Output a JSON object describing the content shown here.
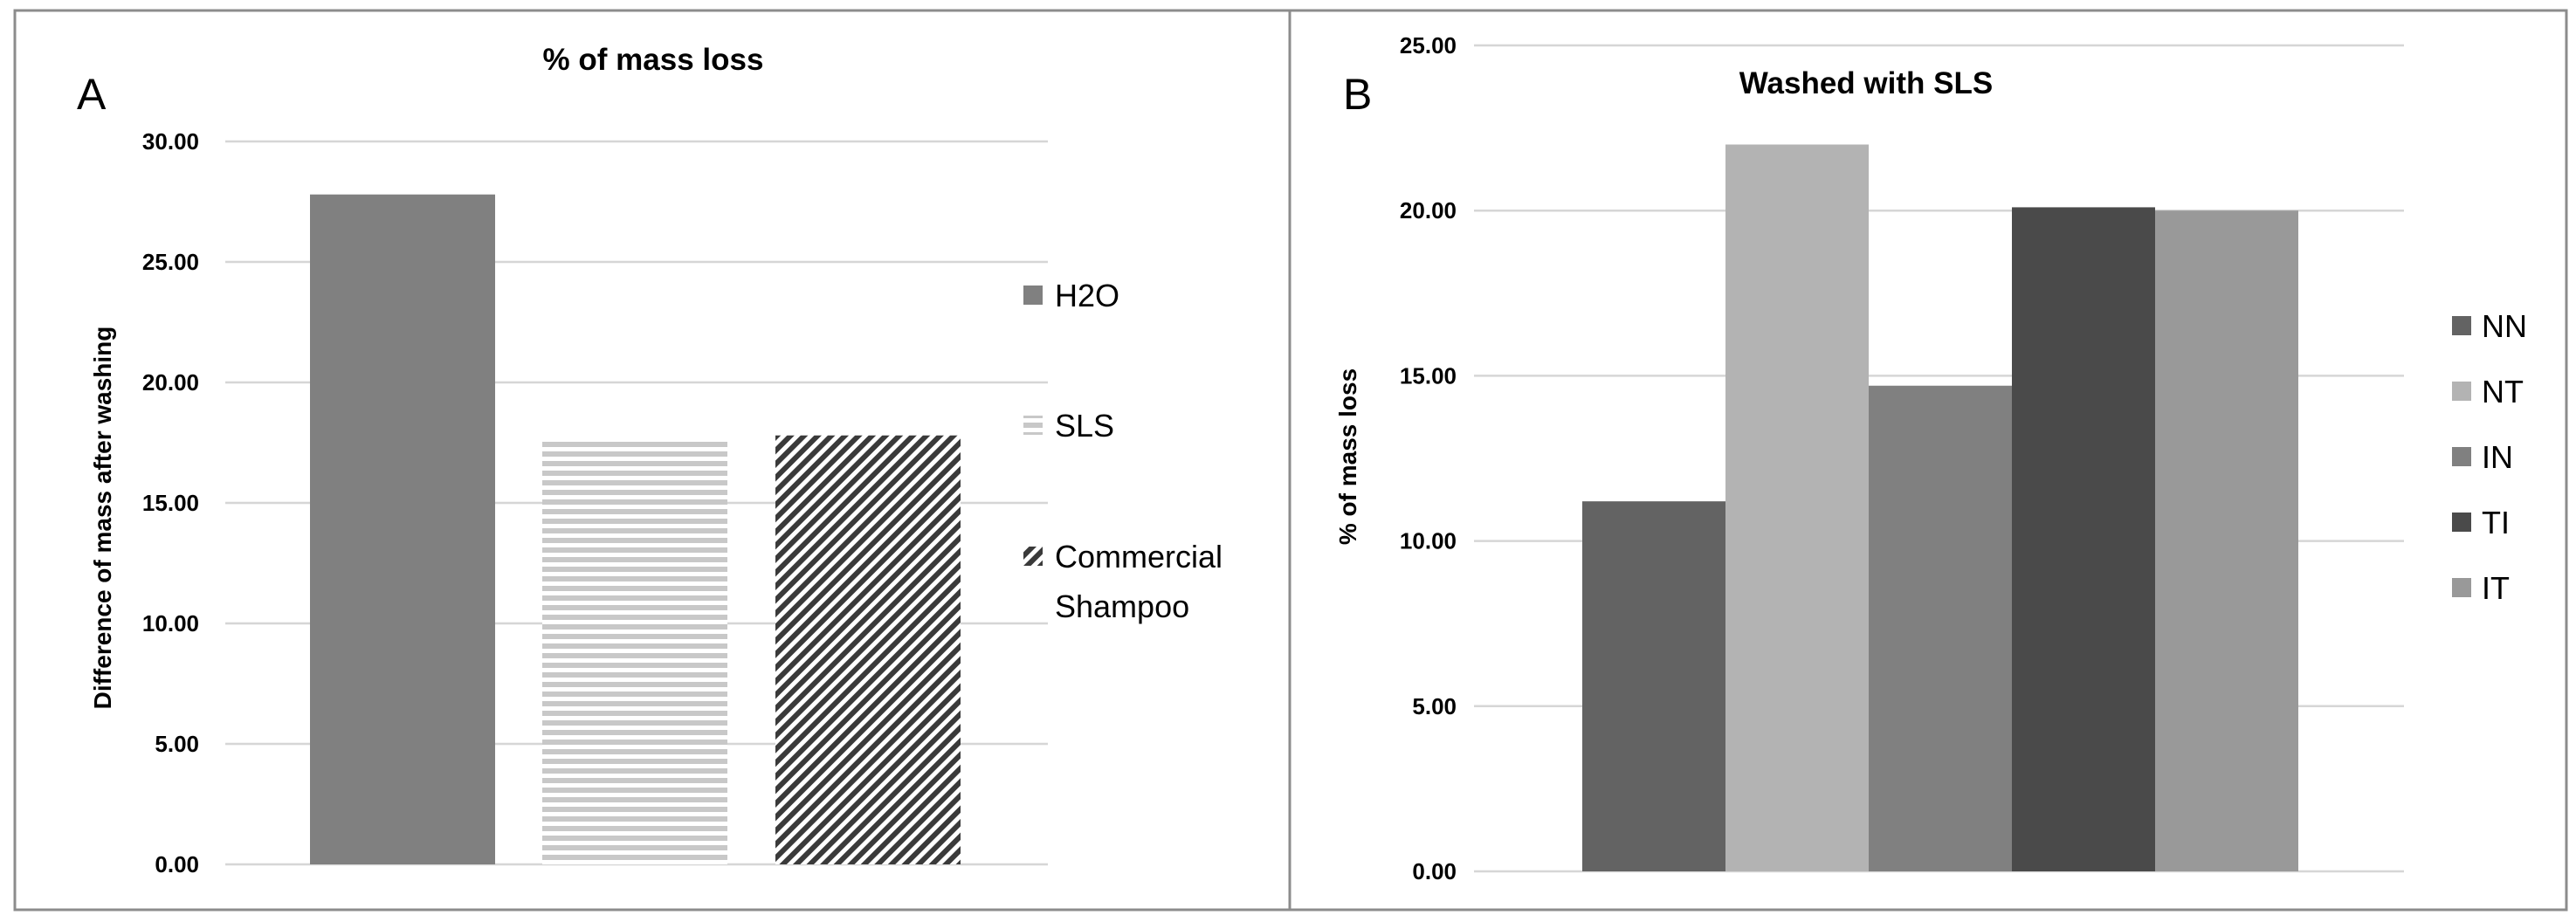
{
  "chart_data": [
    {
      "type": "bar",
      "panel_label": "A",
      "title": "% of mass loss",
      "xlabel": "",
      "ylabel": "Difference of mass after washing",
      "ylim": [
        0,
        30
      ],
      "yticks": [
        "0.00",
        "5.00",
        "10.00",
        "15.00",
        "20.00",
        "25.00",
        "30.00"
      ],
      "grid": true,
      "legend_position": "right",
      "series": [
        {
          "name": "H2O",
          "values": [
            27.8
          ],
          "color": "#808080",
          "pattern": "solid"
        },
        {
          "name": "SLS",
          "values": [
            17.6
          ],
          "color": "#c8c8c8",
          "pattern": "horizontal-lines"
        },
        {
          "name": "Commercial Shampoo",
          "values": [
            17.8
          ],
          "color": "#3a3a3a",
          "pattern": "diagonal-hatch"
        }
      ],
      "legend_lines": {
        "H2O": [
          "H2O"
        ],
        "SLS": [
          "SLS"
        ],
        "Commercial Shampoo": [
          "Commercial",
          "Shampoo"
        ]
      }
    },
    {
      "type": "bar",
      "panel_label": "B",
      "title": "Washed with SLS",
      "xlabel": "",
      "ylabel": "% of mass loss",
      "ylim": [
        0,
        25
      ],
      "yticks": [
        "0.00",
        "5.00",
        "10.00",
        "15.00",
        "20.00",
        "25.00"
      ],
      "grid": true,
      "legend_position": "right",
      "series": [
        {
          "name": "NN",
          "values": [
            11.2
          ],
          "color": "#636363"
        },
        {
          "name": "NT",
          "values": [
            22.0
          ],
          "color": "#b3b3b3"
        },
        {
          "name": "IN",
          "values": [
            14.7
          ],
          "color": "#808080"
        },
        {
          "name": "TI",
          "values": [
            20.1
          ],
          "color": "#4a4a4a"
        },
        {
          "name": "IT",
          "values": [
            20.0
          ],
          "color": "#999999"
        }
      ]
    }
  ]
}
